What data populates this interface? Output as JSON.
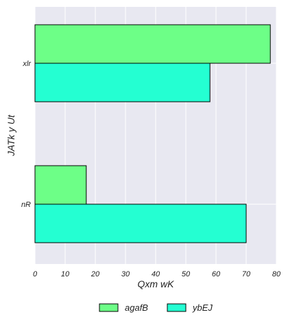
{
  "chart_data": {
    "type": "bar",
    "orientation": "horizontal",
    "categories": [
      "nR",
      "xlr"
    ],
    "series": [
      {
        "name": "agafB",
        "values": [
          17,
          78
        ],
        "color": "#6dff87"
      },
      {
        "name": "ybEJ",
        "values": [
          70,
          58
        ],
        "color": "#24ffd2"
      }
    ],
    "title": "",
    "xlabel": "Qxm wK",
    "ylabel": "JATk y Ut",
    "xlim": [
      0,
      80
    ],
    "xticks": [
      0,
      10,
      20,
      30,
      40,
      50,
      60,
      70,
      80
    ],
    "grid": true,
    "legend_position": "bottom-center",
    "background_color": "#e8e8f1"
  }
}
